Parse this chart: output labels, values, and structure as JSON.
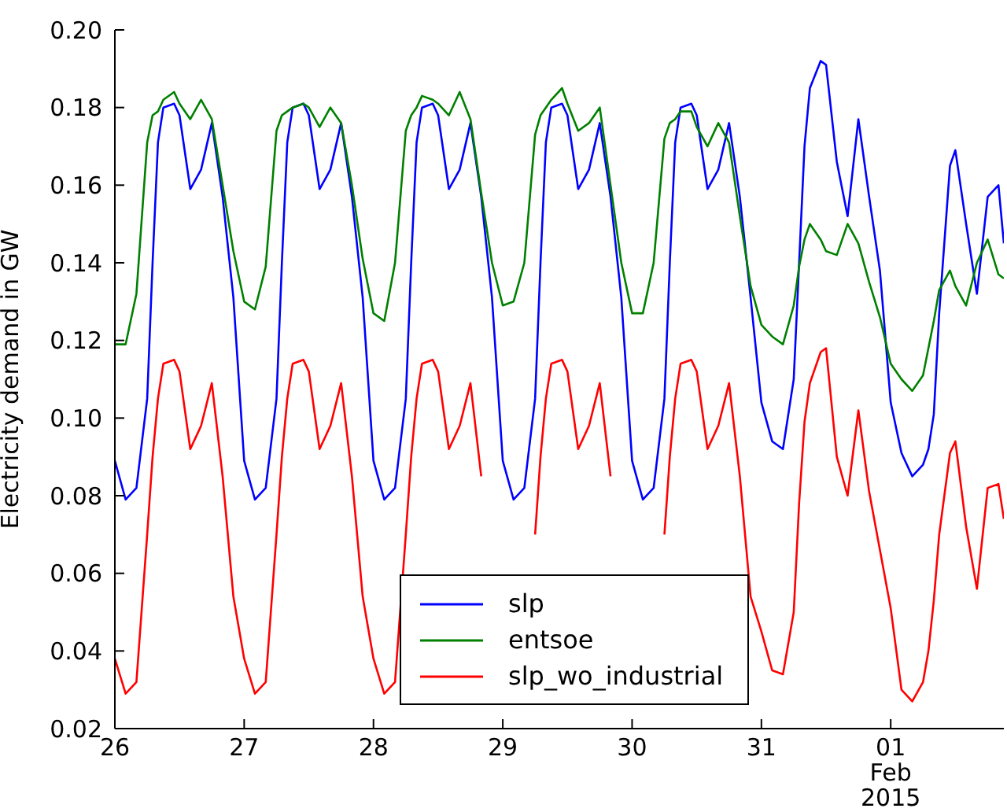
{
  "chart_data": {
    "type": "line",
    "ylabel": "Electricity demand in GW",
    "x": [
      "2015-01-26T00:00",
      "2015-01-26T02:00",
      "2015-01-26T04:00",
      "2015-01-26T06:00",
      "2015-01-26T07:00",
      "2015-01-26T08:00",
      "2015-01-26T09:00",
      "2015-01-26T11:00",
      "2015-01-26T12:00",
      "2015-01-26T14:00",
      "2015-01-26T16:00",
      "2015-01-26T18:00",
      "2015-01-26T20:00",
      "2015-01-26T22:00",
      "2015-01-27T00:00",
      "2015-01-27T02:00",
      "2015-01-27T04:00",
      "2015-01-27T06:00",
      "2015-01-27T07:00",
      "2015-01-27T08:00",
      "2015-01-27T09:00",
      "2015-01-27T11:00",
      "2015-01-27T12:00",
      "2015-01-27T14:00",
      "2015-01-27T16:00",
      "2015-01-27T18:00",
      "2015-01-27T20:00",
      "2015-01-27T22:00",
      "2015-01-28T00:00",
      "2015-01-28T02:00",
      "2015-01-28T04:00",
      "2015-01-28T06:00",
      "2015-01-28T07:00",
      "2015-01-28T08:00",
      "2015-01-28T09:00",
      "2015-01-28T11:00",
      "2015-01-28T12:00",
      "2015-01-28T14:00",
      "2015-01-28T16:00",
      "2015-01-28T18:00",
      "2015-01-28T20:00",
      "2015-01-28T22:00",
      "2015-01-29T00:00",
      "2015-01-29T02:00",
      "2015-01-29T04:00",
      "2015-01-29T06:00",
      "2015-01-29T07:00",
      "2015-01-29T08:00",
      "2015-01-29T09:00",
      "2015-01-29T11:00",
      "2015-01-29T12:00",
      "2015-01-29T14:00",
      "2015-01-29T16:00",
      "2015-01-29T18:00",
      "2015-01-29T20:00",
      "2015-01-29T22:00",
      "2015-01-30T00:00",
      "2015-01-30T02:00",
      "2015-01-30T04:00",
      "2015-01-30T06:00",
      "2015-01-30T07:00",
      "2015-01-30T08:00",
      "2015-01-30T09:00",
      "2015-01-30T11:00",
      "2015-01-30T12:00",
      "2015-01-30T14:00",
      "2015-01-30T16:00",
      "2015-01-30T18:00",
      "2015-01-30T20:00",
      "2015-01-30T22:00",
      "2015-01-31T00:00",
      "2015-01-31T02:00",
      "2015-01-31T04:00",
      "2015-01-31T06:00",
      "2015-01-31T07:00",
      "2015-01-31T08:00",
      "2015-01-31T09:00",
      "2015-01-31T11:00",
      "2015-01-31T12:00",
      "2015-01-31T14:00",
      "2015-01-31T16:00",
      "2015-01-31T18:00",
      "2015-01-31T20:00",
      "2015-01-31T22:00",
      "2015-02-01T00:00",
      "2015-02-01T02:00",
      "2015-02-01T04:00",
      "2015-02-01T06:00",
      "2015-02-01T07:00",
      "2015-02-01T08:00",
      "2015-02-01T09:00",
      "2015-02-01T11:00",
      "2015-02-01T12:00",
      "2015-02-01T14:00",
      "2015-02-01T16:00",
      "2015-02-01T18:00",
      "2015-02-01T20:00",
      "2015-02-01T21:00"
    ],
    "series": [
      {
        "name": "slp",
        "color": "#0000ff",
        "values": [
          0.089,
          0.079,
          0.082,
          0.105,
          0.14,
          0.171,
          0.18,
          0.181,
          0.178,
          0.159,
          0.164,
          0.176,
          0.157,
          0.131,
          0.089,
          0.079,
          0.082,
          0.105,
          0.14,
          0.171,
          0.18,
          0.181,
          0.178,
          0.159,
          0.164,
          0.176,
          0.157,
          0.131,
          0.089,
          0.079,
          0.082,
          0.105,
          0.14,
          0.171,
          0.18,
          0.181,
          0.178,
          0.159,
          0.164,
          0.176,
          0.157,
          0.131,
          0.089,
          0.079,
          0.082,
          0.105,
          0.14,
          0.171,
          0.18,
          0.181,
          0.178,
          0.159,
          0.164,
          0.176,
          0.157,
          0.131,
          0.089,
          0.079,
          0.082,
          0.105,
          0.14,
          0.171,
          0.18,
          0.181,
          0.178,
          0.159,
          0.164,
          0.176,
          0.157,
          0.131,
          0.104,
          0.094,
          0.092,
          0.11,
          0.14,
          0.17,
          0.185,
          0.192,
          0.191,
          0.166,
          0.152,
          0.177,
          0.157,
          0.138,
          0.104,
          0.091,
          0.085,
          0.088,
          0.092,
          0.101,
          0.127,
          0.165,
          0.169,
          0.15,
          0.132,
          0.157,
          0.16,
          0.145
        ]
      },
      {
        "name": "entsoe",
        "color": "#008000",
        "values": [
          0.119,
          0.119,
          0.132,
          0.171,
          0.178,
          0.179,
          0.182,
          0.184,
          0.181,
          0.177,
          0.182,
          0.177,
          0.16,
          0.143,
          0.13,
          0.128,
          0.139,
          0.174,
          0.178,
          0.179,
          0.18,
          0.181,
          0.18,
          0.175,
          0.18,
          0.176,
          0.16,
          0.141,
          0.127,
          0.125,
          0.14,
          0.174,
          0.178,
          0.18,
          0.183,
          0.182,
          0.181,
          0.178,
          0.184,
          0.177,
          0.158,
          0.14,
          0.129,
          0.13,
          0.14,
          0.173,
          0.178,
          0.18,
          0.182,
          0.185,
          0.181,
          0.174,
          0.176,
          0.18,
          0.16,
          0.14,
          0.127,
          0.127,
          0.14,
          0.172,
          0.176,
          0.177,
          0.179,
          0.179,
          0.175,
          0.17,
          0.176,
          0.171,
          0.152,
          0.134,
          0.124,
          0.121,
          0.119,
          0.129,
          0.139,
          0.146,
          0.15,
          0.146,
          0.143,
          0.142,
          0.15,
          0.145,
          0.135,
          0.126,
          0.114,
          0.11,
          0.107,
          0.111,
          0.118,
          0.125,
          0.133,
          0.138,
          0.134,
          0.129,
          0.14,
          0.146,
          0.137,
          0.136
        ]
      },
      {
        "name": "slp_wo_industrial",
        "color": "#ff0000",
        "values": [
          0.038,
          0.029,
          0.032,
          0.07,
          0.09,
          0.105,
          0.114,
          0.115,
          0.112,
          0.092,
          0.098,
          0.109,
          0.085,
          0.054,
          0.038,
          0.029,
          0.032,
          0.07,
          0.09,
          0.105,
          0.114,
          0.115,
          0.112,
          0.092,
          0.098,
          0.109,
          0.085,
          0.054,
          0.038,
          0.029,
          0.032,
          0.07,
          0.09,
          0.105,
          0.114,
          0.115,
          0.112,
          0.092,
          0.098,
          0.109,
          0.085,
          null,
          null,
          null,
          null,
          0.07,
          0.09,
          0.105,
          0.114,
          0.115,
          0.112,
          0.092,
          0.098,
          0.109,
          0.085,
          null,
          null,
          null,
          null,
          0.07,
          0.09,
          0.105,
          0.114,
          0.115,
          0.112,
          0.092,
          0.098,
          0.109,
          0.085,
          0.054,
          0.045,
          0.035,
          0.034,
          0.05,
          0.078,
          0.099,
          0.109,
          0.117,
          0.118,
          0.09,
          0.08,
          0.102,
          0.081,
          0.066,
          0.051,
          0.03,
          0.027,
          0.032,
          0.04,
          0.053,
          0.07,
          0.091,
          0.094,
          0.072,
          0.056,
          0.082,
          0.083,
          0.074
        ]
      }
    ],
    "xlim": [
      "2015-01-26T00:00",
      "2015-02-01T21:00"
    ],
    "xticks": [
      {
        "value": "2015-01-26",
        "label": "26"
      },
      {
        "value": "2015-01-27",
        "label": "27"
      },
      {
        "value": "2015-01-28",
        "label": "28"
      },
      {
        "value": "2015-01-29",
        "label": "29"
      },
      {
        "value": "2015-01-30",
        "label": "30"
      },
      {
        "value": "2015-01-31",
        "label": "31"
      },
      {
        "value": "2015-02-01",
        "label": "01\nFeb\n2015"
      }
    ],
    "ylim": [
      0.02,
      0.2
    ],
    "yticks": [
      0.02,
      0.04,
      0.06,
      0.08,
      {
        "value": 0.1,
        "label": "0.10"
      },
      0.12,
      0.14,
      0.16,
      0.18,
      {
        "value": 0.2,
        "label": "0.20"
      }
    ],
    "legend": "bottom",
    "grid": false,
    "marker": "none",
    "line_style": "solid"
  }
}
